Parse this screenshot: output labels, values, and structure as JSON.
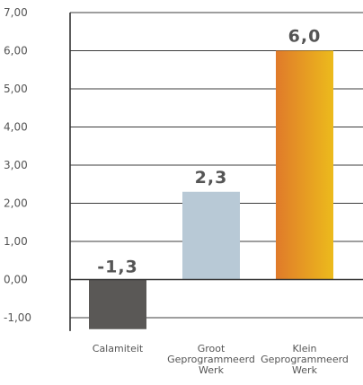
{
  "chart_data": {
    "type": "bar",
    "categories": [
      [
        "Calamiteit"
      ],
      [
        "Groot",
        "Geprogrammeerd",
        "Werk"
      ],
      [
        "Klein",
        "Geprogrammeerd",
        "Werk"
      ]
    ],
    "values": [
      -1.3,
      2.3,
      6.0
    ],
    "data_labels": [
      "-1,3",
      "2,3",
      "6,0"
    ],
    "y_ticks": [
      -1,
      0,
      1,
      2,
      3,
      4,
      5,
      6,
      7
    ],
    "y_tick_labels": [
      "-1,00",
      "0,00",
      "1,00",
      "2,00",
      "3,00",
      "4,00",
      "5,00",
      "6,00",
      "7,00"
    ],
    "ylim": [
      -1.35,
      7.0
    ],
    "grid": true,
    "bar_colors": [
      {
        "from": "#5a5856",
        "to": "#5a5856"
      },
      {
        "from": "#b8c9d6",
        "to": "#b8c9d6"
      },
      {
        "from": "#e07a2a",
        "to": "#ecbb1c"
      }
    ],
    "title": "",
    "xlabel": "",
    "ylabel": ""
  }
}
